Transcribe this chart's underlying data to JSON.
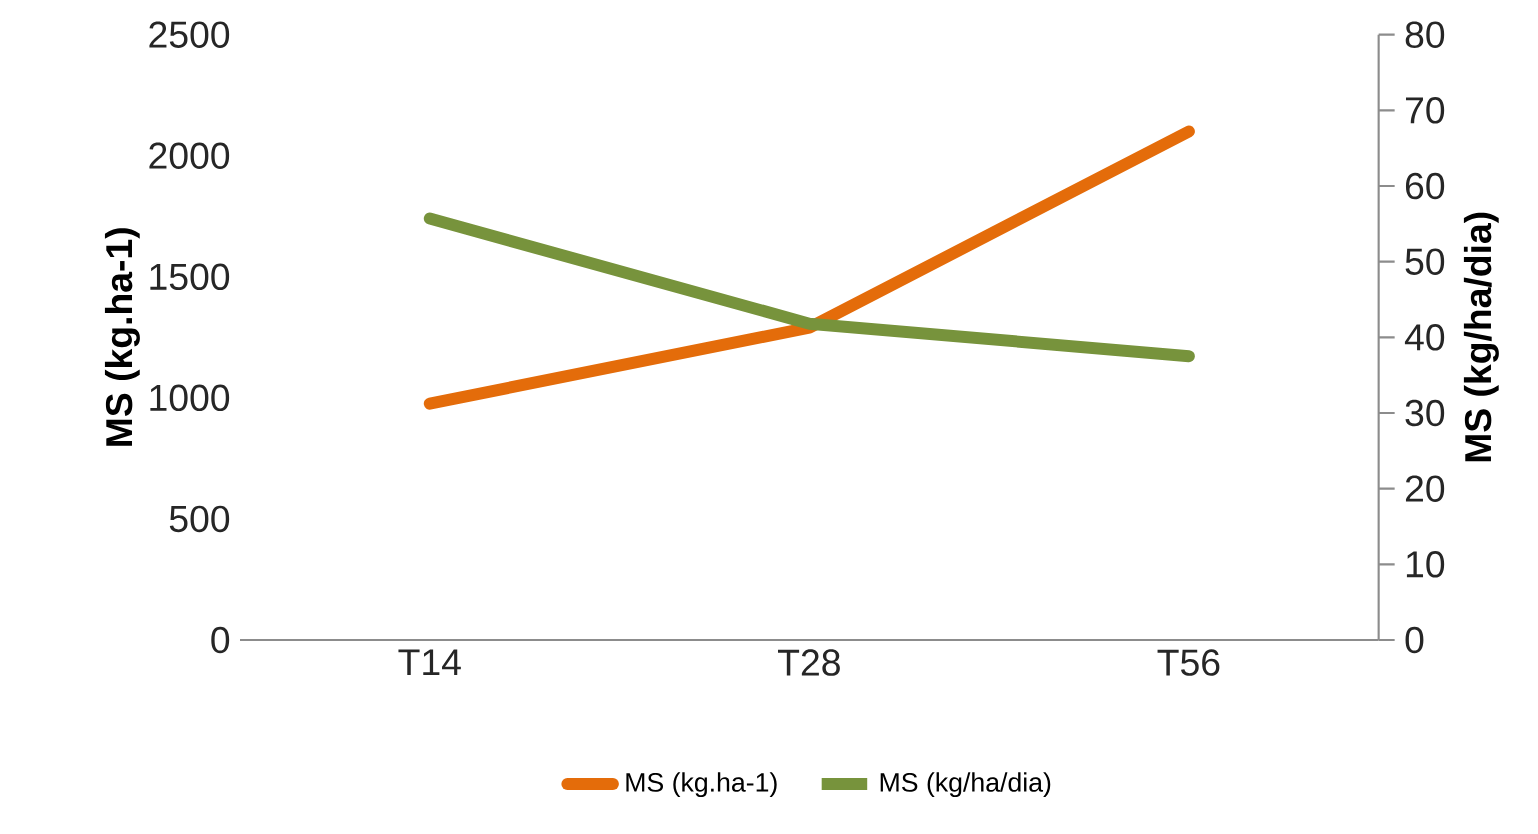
{
  "chart_data": {
    "type": "line",
    "categories": [
      "T14",
      "T28",
      "T56"
    ],
    "series": [
      {
        "name": "MS (kg.ha-1)",
        "color": "#e46c0a",
        "values": [
          976,
          1290,
          2100
        ]
      },
      {
        "name": "MS (kg/ha/dia)",
        "color": "#77933c",
        "values": [
          55.7,
          41.8,
          37.5
        ],
        "axis": "y2"
      }
    ],
    "ylabel": "MS (kg.ha-1)",
    "y2label": "MS (kg/ha/dia)",
    "ylim": [
      0,
      2500
    ],
    "yticks": [
      0,
      500,
      1000,
      1500,
      2000,
      2500
    ],
    "y2lim": [
      0,
      80
    ],
    "y2ticks": [
      0,
      10,
      20,
      30,
      40,
      50,
      60,
      70,
      80
    ],
    "legend": "bottom"
  }
}
